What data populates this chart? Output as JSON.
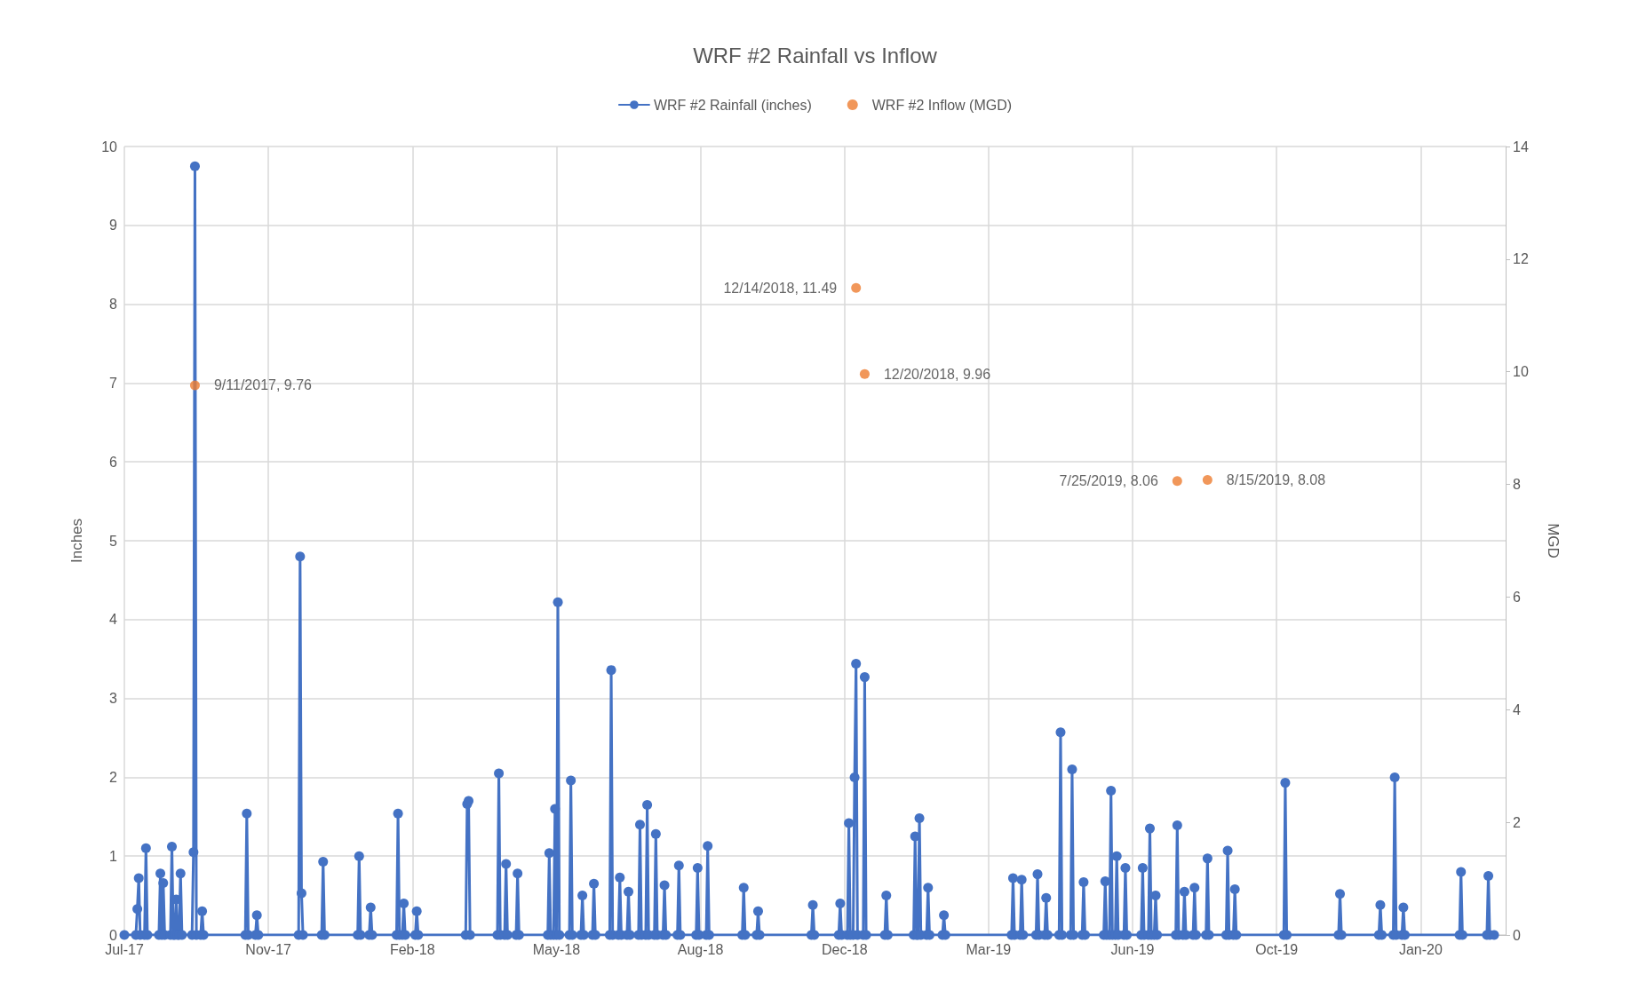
{
  "chart_data": {
    "type": "line",
    "title": "WRF #2 Rainfall vs Inflow",
    "ylabel": "Inches",
    "y2label": "MGD",
    "xlim": [
      "2017-07-24",
      "2020-03-09"
    ],
    "xticks": [
      {
        "value": "2017-07-24",
        "label": "Jul-17"
      },
      {
        "value": "2017-11-01",
        "label": "Nov-17"
      },
      {
        "value": "2018-02-09",
        "label": "Feb-18"
      },
      {
        "value": "2018-05-20",
        "label": "May-18"
      },
      {
        "value": "2018-08-28",
        "label": "Aug-18"
      },
      {
        "value": "2018-12-06",
        "label": "Dec-18"
      },
      {
        "value": "2019-03-16",
        "label": "Mar-19"
      },
      {
        "value": "2019-06-24",
        "label": "Jun-19"
      },
      {
        "value": "2019-10-02",
        "label": "Oct-19"
      },
      {
        "value": "2020-01-10",
        "label": "Jan-20"
      }
    ],
    "ylim": [
      0,
      10
    ],
    "yticks": [
      0,
      1,
      2,
      3,
      4,
      5,
      6,
      7,
      8,
      9,
      10
    ],
    "y2lim": [
      0,
      14
    ],
    "y2ticks": [
      0,
      2,
      4,
      6,
      8,
      10,
      12,
      14
    ],
    "grid": true,
    "legend": "top",
    "marker": "circle",
    "line_style": "solid",
    "series": [
      {
        "name": "WRF #2 Rainfall (inches)",
        "color": "#4472c4",
        "x": [
          "2017-07-24",
          "2017-08-01",
          "2017-08-02",
          "2017-08-03",
          "2017-08-04",
          "2017-08-07",
          "2017-08-08",
          "2017-08-09",
          "2017-08-17",
          "2017-08-18",
          "2017-08-19",
          "2017-08-20",
          "2017-08-21",
          "2017-08-25",
          "2017-08-26",
          "2017-08-27",
          "2017-08-28",
          "2017-08-29",
          "2017-08-30",
          "2017-08-31",
          "2017-09-01",
          "2017-09-02",
          "2017-09-09",
          "2017-09-10",
          "2017-09-11",
          "2017-09-12",
          "2017-09-15",
          "2017-09-16",
          "2017-09-17",
          "2017-10-16",
          "2017-10-17",
          "2017-10-18",
          "2017-10-23",
          "2017-10-24",
          "2017-10-25",
          "2017-11-22",
          "2017-11-23",
          "2017-11-24",
          "2017-11-25",
          "2017-12-08",
          "2017-12-09",
          "2017-12-10",
          "2018-01-02",
          "2018-01-03",
          "2018-01-04",
          "2018-01-10",
          "2018-01-11",
          "2018-01-12",
          "2018-01-29",
          "2018-01-30",
          "2018-01-31",
          "2018-02-02",
          "2018-02-03",
          "2018-02-04",
          "2018-02-11",
          "2018-02-12",
          "2018-02-13",
          "2018-03-18",
          "2018-03-19",
          "2018-03-20",
          "2018-03-21",
          "2018-04-09",
          "2018-04-10",
          "2018-04-11",
          "2018-04-14",
          "2018-04-15",
          "2018-04-16",
          "2018-04-22",
          "2018-04-23",
          "2018-04-24",
          "2018-05-14",
          "2018-05-15",
          "2018-05-16",
          "2018-05-18",
          "2018-05-19",
          "2018-05-20",
          "2018-05-21",
          "2018-05-22",
          "2018-05-29",
          "2018-05-30",
          "2018-05-31",
          "2018-06-06",
          "2018-06-07",
          "2018-06-08",
          "2018-06-14",
          "2018-06-15",
          "2018-06-16",
          "2018-06-26",
          "2018-06-27",
          "2018-06-28",
          "2018-07-02",
          "2018-07-03",
          "2018-07-04",
          "2018-07-08",
          "2018-07-09",
          "2018-07-10",
          "2018-07-16",
          "2018-07-17",
          "2018-07-18",
          "2018-07-21",
          "2018-07-22",
          "2018-07-23",
          "2018-07-27",
          "2018-07-28",
          "2018-07-29",
          "2018-08-02",
          "2018-08-03",
          "2018-08-04",
          "2018-08-12",
          "2018-08-13",
          "2018-08-14",
          "2018-08-25",
          "2018-08-26",
          "2018-08-27",
          "2018-09-01",
          "2018-09-02",
          "2018-09-03",
          "2018-09-26",
          "2018-09-27",
          "2018-09-28",
          "2018-10-06",
          "2018-10-07",
          "2018-10-08",
          "2018-11-13",
          "2018-11-14",
          "2018-11-15",
          "2018-12-02",
          "2018-12-03",
          "2018-12-04",
          "2018-12-08",
          "2018-12-09",
          "2018-12-10",
          "2018-12-12",
          "2018-12-13",
          "2018-12-14",
          "2018-12-15",
          "2018-12-19",
          "2018-12-20",
          "2018-12-21",
          "2019-01-03",
          "2019-01-04",
          "2019-01-05",
          "2019-01-23",
          "2019-01-24",
          "2019-01-25",
          "2019-01-26",
          "2019-01-27",
          "2019-01-28",
          "2019-02-01",
          "2019-02-02",
          "2019-02-03",
          "2019-02-12",
          "2019-02-13",
          "2019-02-14",
          "2019-04-01",
          "2019-04-02",
          "2019-04-03",
          "2019-04-07",
          "2019-04-08",
          "2019-04-09",
          "2019-04-18",
          "2019-04-19",
          "2019-04-20",
          "2019-04-24",
          "2019-04-25",
          "2019-04-26",
          "2019-05-04",
          "2019-05-05",
          "2019-05-06",
          "2019-05-12",
          "2019-05-13",
          "2019-05-14",
          "2019-05-20",
          "2019-05-21",
          "2019-05-22",
          "2019-06-04",
          "2019-06-05",
          "2019-06-06",
          "2019-06-08",
          "2019-06-09",
          "2019-06-10",
          "2019-06-12",
          "2019-06-13",
          "2019-06-14",
          "2019-06-18",
          "2019-06-19",
          "2019-06-20",
          "2019-06-30",
          "2019-07-01",
          "2019-07-02",
          "2019-07-05",
          "2019-07-06",
          "2019-07-07",
          "2019-07-09",
          "2019-07-10",
          "2019-07-11",
          "2019-07-24",
          "2019-07-25",
          "2019-07-26",
          "2019-07-29",
          "2019-07-30",
          "2019-07-31",
          "2019-08-05",
          "2019-08-06",
          "2019-08-07",
          "2019-08-14",
          "2019-08-15",
          "2019-08-16",
          "2019-08-28",
          "2019-08-29",
          "2019-08-30",
          "2019-09-02",
          "2019-09-03",
          "2019-09-04",
          "2019-10-07",
          "2019-10-08",
          "2019-10-09",
          "2019-11-14",
          "2019-11-15",
          "2019-11-16",
          "2019-12-12",
          "2019-12-13",
          "2019-12-14",
          "2019-12-22",
          "2019-12-23",
          "2019-12-24",
          "2019-12-28",
          "2019-12-29",
          "2019-12-30",
          "2020-02-06",
          "2020-02-07",
          "2020-02-08",
          "2020-02-25",
          "2020-02-26",
          "2020-02-27",
          "2020-03-01"
        ],
        "values": [
          0,
          0,
          0.33,
          0.72,
          0,
          0,
          1.1,
          0,
          0,
          0.78,
          0,
          0.66,
          0,
          0,
          1.12,
          0,
          0,
          0.45,
          0,
          0,
          0.78,
          0,
          0,
          1.05,
          9.75,
          0,
          0,
          0.3,
          0,
          0,
          1.54,
          0,
          0,
          0.25,
          0,
          0,
          4.8,
          0.53,
          0,
          0,
          0.93,
          0,
          0,
          1.0,
          0,
          0,
          0.35,
          0,
          0,
          1.54,
          0,
          0,
          0.4,
          0,
          0,
          0.3,
          0,
          0,
          1.66,
          1.7,
          0,
          0,
          2.05,
          0,
          0,
          0.9,
          0,
          0,
          0.78,
          0,
          0,
          1.04,
          0,
          0,
          1.6,
          0,
          4.22,
          0,
          0,
          1.96,
          0,
          0,
          0.5,
          0,
          0,
          0.65,
          0,
          0,
          3.36,
          0,
          0,
          0.73,
          0,
          0,
          0.55,
          0,
          0,
          1.4,
          0,
          0,
          1.65,
          0,
          0,
          1.28,
          0,
          0,
          0.63,
          0,
          0,
          0.88,
          0,
          0,
          0.85,
          0,
          0,
          1.13,
          0,
          0,
          0.6,
          0,
          0,
          0.3,
          0,
          0,
          0.38,
          0,
          0,
          0.4,
          0,
          0,
          1.42,
          0,
          0,
          2.0,
          3.44,
          0,
          0,
          3.27,
          0,
          0,
          0.5,
          0,
          0,
          1.25,
          0,
          0,
          1.48,
          0,
          0,
          0.6,
          0,
          0,
          0.25,
          0,
          0,
          0.72,
          0,
          0,
          0.7,
          0,
          0,
          0.77,
          0,
          0,
          0.47,
          0,
          0,
          2.57,
          0,
          0,
          2.1,
          0,
          0,
          0.67,
          0,
          0,
          0.68,
          0,
          0,
          1.83,
          0,
          0,
          1.0,
          0,
          0,
          0.85,
          0,
          0,
          0.85,
          0,
          0,
          1.35,
          0,
          0,
          0.5,
          0,
          0,
          1.39,
          0,
          0,
          0.55,
          0,
          0,
          0.6,
          0,
          0,
          0.97,
          0,
          0,
          1.07,
          0,
          0,
          0.58,
          0,
          0,
          1.93,
          0,
          0,
          0.52,
          0,
          0,
          0.38,
          0,
          0,
          2.0,
          0,
          0,
          0.35,
          0,
          0,
          0.8,
          0,
          0,
          0.75,
          0,
          0
        ]
      },
      {
        "name": "WRF #2 Inflow (MGD)",
        "color": "#ed7d31",
        "type": "scatter",
        "axis": "y2",
        "x": [
          "2017-09-11",
          "2018-12-14",
          "2018-12-20",
          "2019-07-25",
          "2019-08-15"
        ],
        "values": [
          9.76,
          11.49,
          9.96,
          8.06,
          8.08
        ],
        "value_labels": [
          "9/11/2017, 9.76",
          "12/14/2018, 11.49",
          "12/20/2018, 9.96",
          "7/25/2019, 8.06",
          "8/15/2019, 8.08"
        ]
      }
    ]
  }
}
